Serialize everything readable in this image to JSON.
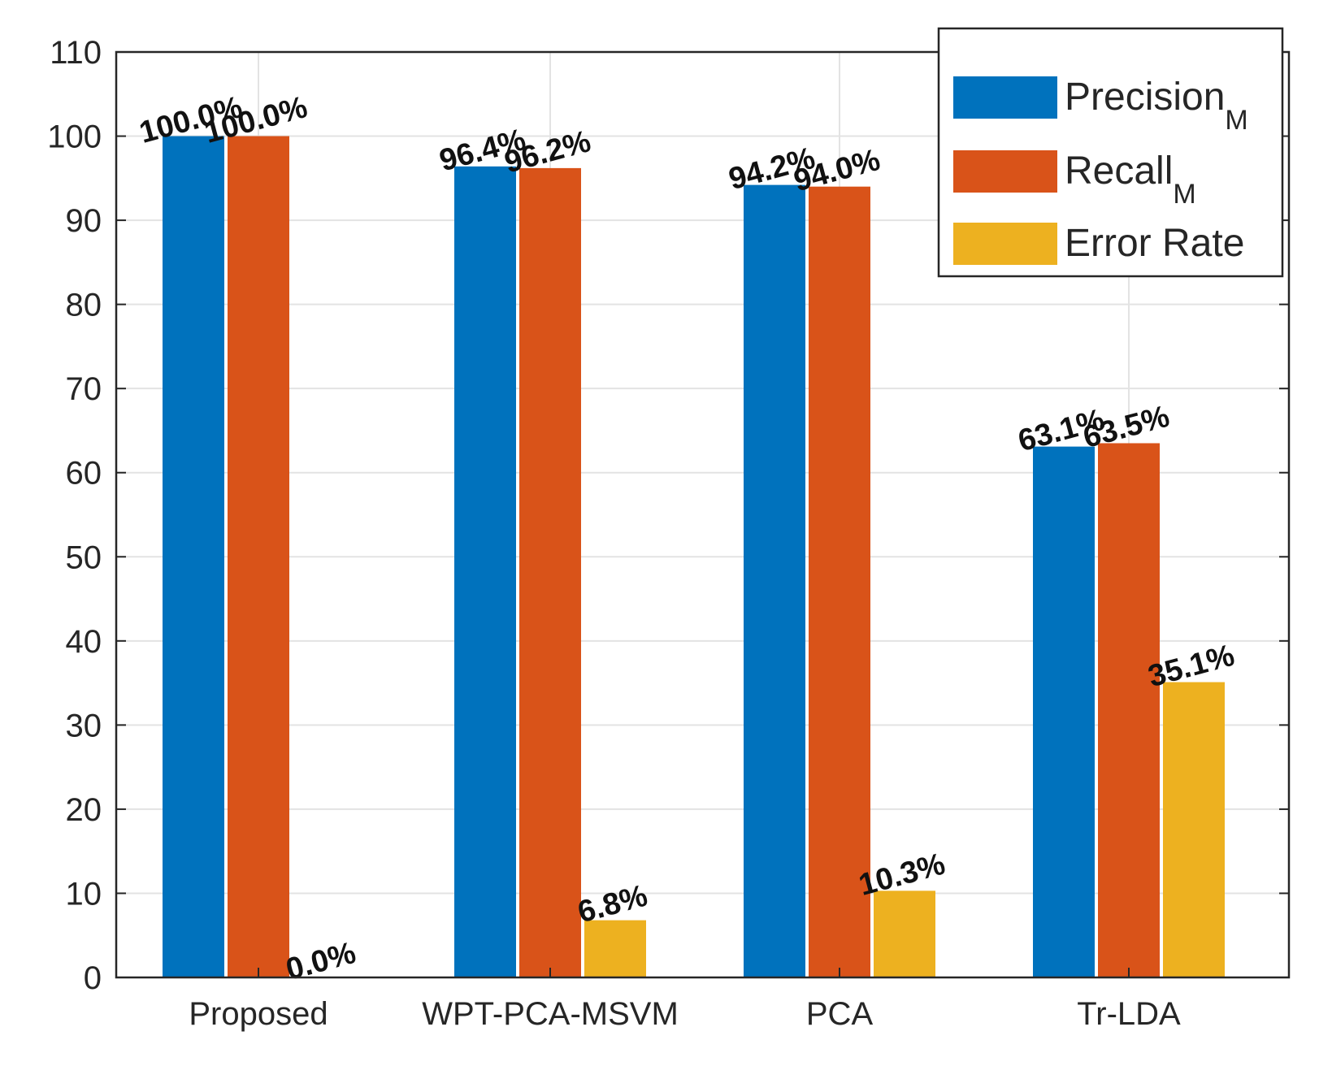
{
  "chart_data": {
    "type": "bar",
    "title": "",
    "xlabel": "",
    "ylabel": "",
    "categories": [
      "Proposed",
      "WPT-PCA-MSVM",
      "PCA",
      "Tr-LDA"
    ],
    "ylim": [
      0,
      110
    ],
    "yticks": [
      0,
      10,
      20,
      30,
      40,
      50,
      60,
      70,
      80,
      90,
      100,
      110
    ],
    "grid": true,
    "legend_position": "top-right",
    "series": [
      {
        "name": "Precision",
        "name_sub": "M",
        "color": "#0072BD",
        "values": [
          100.0,
          96.4,
          94.2,
          63.1
        ],
        "labels": [
          "100.0%",
          "96.4%",
          "94.2%",
          "63.1%"
        ]
      },
      {
        "name": "Recall",
        "name_sub": "M",
        "color": "#D95319",
        "values": [
          100.0,
          96.2,
          94.0,
          63.5
        ],
        "labels": [
          "100.0%",
          "96.2%",
          "94.0%",
          "63.5%"
        ]
      },
      {
        "name": "Error Rate",
        "name_sub": "",
        "color": "#EDB120",
        "values": [
          0.0,
          6.8,
          10.3,
          35.1
        ],
        "labels": [
          "0.0%",
          "6.8%",
          "10.3%",
          "35.1%"
        ]
      }
    ]
  }
}
